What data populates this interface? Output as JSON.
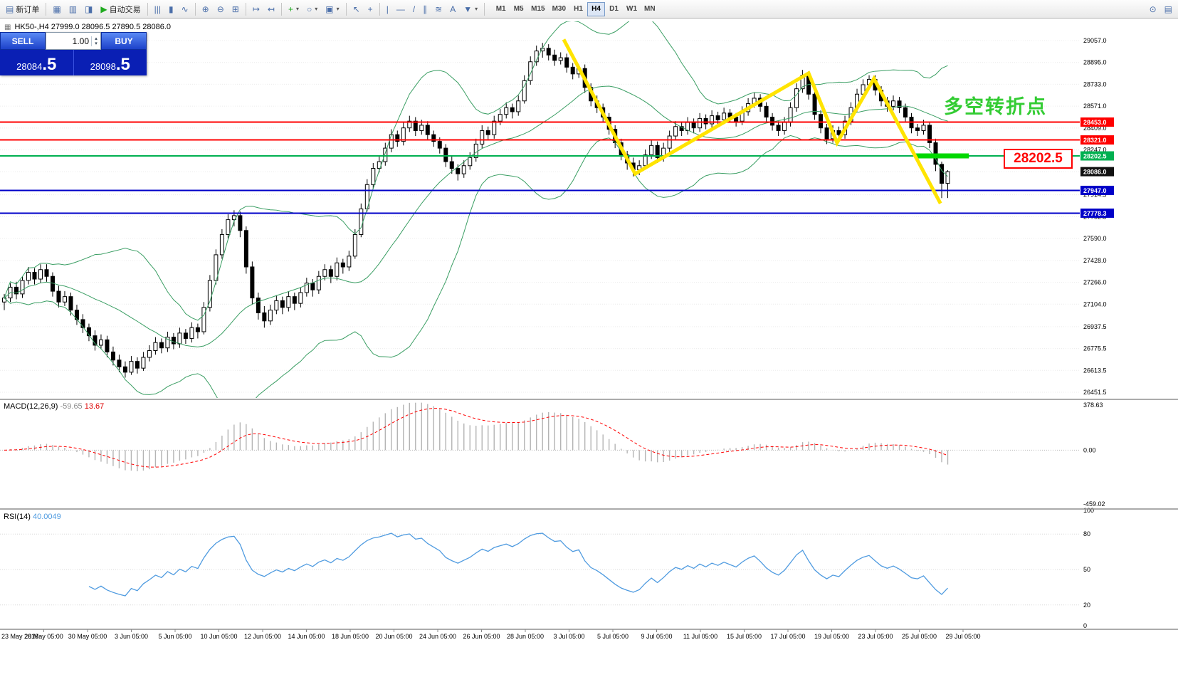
{
  "toolbar": {
    "items": [
      {
        "name": "new-order-button",
        "glyph": "▤",
        "label": "新订单"
      },
      {
        "name": "sep"
      },
      {
        "name": "chart-window-icon",
        "glyph": "▦"
      },
      {
        "name": "data-window-icon",
        "glyph": "▥"
      },
      {
        "name": "navigator-icon",
        "glyph": "◨"
      },
      {
        "name": "auto-trading-button",
        "glyph": "▶",
        "label": "自动交易",
        "glyph_color": "#1faa1f"
      },
      {
        "name": "sep"
      },
      {
        "name": "bar-chart-mode-icon",
        "glyph": "|||"
      },
      {
        "name": "candlestick-mode-icon",
        "glyph": "▮"
      },
      {
        "name": "line-chart-mode-icon",
        "glyph": "∿"
      },
      {
        "name": "sep"
      },
      {
        "name": "zoom-in-icon",
        "glyph": "⊕"
      },
      {
        "name": "zoom-out-icon",
        "glyph": "⊖"
      },
      {
        "name": "tile-windows-icon",
        "glyph": "⊞"
      },
      {
        "name": "sep"
      },
      {
        "name": "auto-scroll-icon",
        "glyph": "↦"
      },
      {
        "name": "chart-shift-icon",
        "glyph": "↤"
      },
      {
        "name": "sep"
      },
      {
        "name": "add-indicator-icon",
        "glyph": "+",
        "glyph_color": "#1faa1f",
        "dropdown": true
      },
      {
        "name": "period-icon",
        "glyph": "○",
        "dropdown": true
      },
      {
        "name": "template-icon",
        "glyph": "▣",
        "dropdown": true
      },
      {
        "name": "sep"
      },
      {
        "name": "cursor-icon",
        "glyph": "↖"
      },
      {
        "name": "crosshair-icon",
        "glyph": "+"
      },
      {
        "name": "sep"
      },
      {
        "name": "vertical-line-icon",
        "glyph": "|"
      },
      {
        "name": "horizontal-line-icon",
        "glyph": "—"
      },
      {
        "name": "trendline-icon",
        "glyph": "/"
      },
      {
        "name": "channel-icon",
        "glyph": "∥"
      },
      {
        "name": "fibonacci-icon",
        "glyph": "≋"
      },
      {
        "name": "text-label-icon",
        "glyph": "A"
      },
      {
        "name": "arrows-tool-icon",
        "glyph": "▼",
        "dropdown": true
      },
      {
        "name": "sep"
      }
    ],
    "timeframes": [
      "M1",
      "M5",
      "M15",
      "M30",
      "H1",
      "H4",
      "D1",
      "W1",
      "MN"
    ],
    "active_timeframe": "H4",
    "right_items": [
      {
        "name": "search-icon",
        "glyph": "⊙"
      },
      {
        "name": "print-icon",
        "glyph": "▤"
      }
    ]
  },
  "symbol_header": {
    "text": "HK50-,H4  27999.0 28096.5 27890.5 28086.0"
  },
  "trade_panel": {
    "sell_label": "SELL",
    "buy_label": "BUY",
    "volume": "1.00",
    "sell_price_main": "28084",
    "sell_price_frac": ".5",
    "buy_price_main": "28098",
    "buy_price_frac": ".5"
  },
  "annotation": {
    "text": "多空转折点",
    "color": "#33cc33"
  },
  "price_label_box": {
    "text": "28202.5",
    "color": "#ff0000"
  },
  "chart_data": {
    "type": "candlestick",
    "symbol": "HK50-",
    "timeframe": "H4",
    "ohlc_header": {
      "open": 27999.0,
      "high": 28096.5,
      "low": 27890.5,
      "close": 28086.0
    },
    "price_axis": {
      "min": 26451.5,
      "max": 29057.0,
      "ticks": [
        "29057.0",
        "28895.0",
        "28733.0",
        "28571.0",
        "28409.0",
        "28247.0",
        "28085.0",
        "27914.5",
        "27752.5",
        "27590.0",
        "27428.0",
        "27266.0",
        "27104.0",
        "26937.5",
        "26775.5",
        "26613.5",
        "26451.5"
      ]
    },
    "candles": [
      [
        27120,
        27180,
        27060,
        27150
      ],
      [
        27150,
        27260,
        27120,
        27230
      ],
      [
        27230,
        27270,
        27140,
        27180
      ],
      [
        27180,
        27310,
        27150,
        27280
      ],
      [
        27280,
        27380,
        27250,
        27340
      ],
      [
        27340,
        27370,
        27250,
        27290
      ],
      [
        27290,
        27400,
        27260,
        27360
      ],
      [
        27360,
        27400,
        27270,
        27310
      ],
      [
        27310,
        27340,
        27160,
        27200
      ],
      [
        27200,
        27240,
        27080,
        27120
      ],
      [
        27120,
        27200,
        27090,
        27160
      ],
      [
        27160,
        27190,
        27020,
        27060
      ],
      [
        27060,
        27100,
        26950,
        26990
      ],
      [
        26990,
        27030,
        26890,
        26930
      ],
      [
        26930,
        26960,
        26830,
        26870
      ],
      [
        26870,
        26910,
        26760,
        26800
      ],
      [
        26800,
        26880,
        26770,
        26840
      ],
      [
        26840,
        26870,
        26710,
        26750
      ],
      [
        26750,
        26790,
        26650,
        26690
      ],
      [
        26690,
        26730,
        26600,
        26640
      ],
      [
        26640,
        26680,
        26560,
        26600
      ],
      [
        26600,
        26720,
        26580,
        26680
      ],
      [
        26680,
        26710,
        26590,
        26630
      ],
      [
        26630,
        26750,
        26610,
        26710
      ],
      [
        26710,
        26800,
        26680,
        26760
      ],
      [
        26760,
        26860,
        26730,
        26820
      ],
      [
        26820,
        26850,
        26740,
        26780
      ],
      [
        26780,
        26900,
        26750,
        26860
      ],
      [
        26860,
        26890,
        26770,
        26810
      ],
      [
        26810,
        26930,
        26780,
        26890
      ],
      [
        26890,
        26920,
        26810,
        26850
      ],
      [
        26850,
        26970,
        26820,
        26930
      ],
      [
        26930,
        26960,
        26850,
        26900
      ],
      [
        26900,
        27120,
        26880,
        27080
      ],
      [
        27080,
        27320,
        27050,
        27280
      ],
      [
        27280,
        27510,
        27250,
        27470
      ],
      [
        27470,
        27660,
        27440,
        27620
      ],
      [
        27620,
        27770,
        27590,
        27730
      ],
      [
        27730,
        27800,
        27680,
        27760
      ],
      [
        27760,
        27790,
        27600,
        27650
      ],
      [
        27650,
        27680,
        27330,
        27380
      ],
      [
        27380,
        27420,
        27100,
        27150
      ],
      [
        27150,
        27190,
        26990,
        27040
      ],
      [
        27040,
        27090,
        26930,
        26980
      ],
      [
        26980,
        27100,
        26950,
        27060
      ],
      [
        27060,
        27170,
        27030,
        27130
      ],
      [
        27130,
        27160,
        27030,
        27080
      ],
      [
        27080,
        27200,
        27050,
        27160
      ],
      [
        27160,
        27190,
        27060,
        27110
      ],
      [
        27110,
        27230,
        27080,
        27190
      ],
      [
        27190,
        27300,
        27160,
        27260
      ],
      [
        27260,
        27290,
        27160,
        27210
      ],
      [
        27210,
        27350,
        27180,
        27310
      ],
      [
        27310,
        27400,
        27280,
        27360
      ],
      [
        27360,
        27390,
        27260,
        27310
      ],
      [
        27310,
        27450,
        27280,
        27410
      ],
      [
        27410,
        27440,
        27330,
        27380
      ],
      [
        27380,
        27500,
        27350,
        27460
      ],
      [
        27460,
        27660,
        27440,
        27620
      ],
      [
        27620,
        27850,
        27600,
        27810
      ],
      [
        27810,
        28030,
        27790,
        27990
      ],
      [
        27990,
        28150,
        27960,
        28110
      ],
      [
        28110,
        28200,
        28080,
        28160
      ],
      [
        28160,
        28300,
        28130,
        28260
      ],
      [
        28260,
        28400,
        28230,
        28360
      ],
      [
        28360,
        28390,
        28270,
        28310
      ],
      [
        28310,
        28450,
        28280,
        28410
      ],
      [
        28410,
        28500,
        28380,
        28460
      ],
      [
        28460,
        28490,
        28350,
        28390
      ],
      [
        28390,
        28470,
        28360,
        28430
      ],
      [
        28430,
        28460,
        28320,
        28360
      ],
      [
        28360,
        28390,
        28270,
        28310
      ],
      [
        28310,
        28340,
        28220,
        28260
      ],
      [
        28260,
        28290,
        28120,
        28160
      ],
      [
        28160,
        28200,
        28070,
        28110
      ],
      [
        28110,
        28140,
        28020,
        28070
      ],
      [
        28070,
        28170,
        28040,
        28130
      ],
      [
        28130,
        28230,
        28100,
        28190
      ],
      [
        28190,
        28330,
        28160,
        28290
      ],
      [
        28290,
        28430,
        28260,
        28390
      ],
      [
        28390,
        28420,
        28320,
        28360
      ],
      [
        28360,
        28500,
        28330,
        28460
      ],
      [
        28460,
        28550,
        28430,
        28510
      ],
      [
        28510,
        28600,
        28480,
        28560
      ],
      [
        28560,
        28590,
        28480,
        28530
      ],
      [
        28530,
        28650,
        28500,
        28610
      ],
      [
        28610,
        28800,
        28590,
        28760
      ],
      [
        28760,
        28940,
        28730,
        28900
      ],
      [
        28900,
        29020,
        28870,
        28980
      ],
      [
        28980,
        29040,
        28930,
        29000
      ],
      [
        29000,
        29030,
        28910,
        28950
      ],
      [
        28950,
        28990,
        28870,
        28910
      ],
      [
        28910,
        28970,
        28880,
        28930
      ],
      [
        28930,
        28960,
        28820,
        28860
      ],
      [
        28860,
        28890,
        28770,
        28810
      ],
      [
        28810,
        28880,
        28780,
        28850
      ],
      [
        28850,
        28880,
        28670,
        28710
      ],
      [
        28710,
        28740,
        28570,
        28610
      ],
      [
        28610,
        28650,
        28520,
        28560
      ],
      [
        28560,
        28590,
        28450,
        28490
      ],
      [
        28490,
        28520,
        28360,
        28400
      ],
      [
        28400,
        28430,
        28260,
        28300
      ],
      [
        28300,
        28330,
        28170,
        28210
      ],
      [
        28210,
        28240,
        28100,
        28150
      ],
      [
        28150,
        28190,
        28050,
        28100
      ],
      [
        28100,
        28170,
        28060,
        28130
      ],
      [
        28130,
        28250,
        28100,
        28210
      ],
      [
        28210,
        28320,
        28180,
        28280
      ],
      [
        28280,
        28310,
        28150,
        28190
      ],
      [
        28190,
        28300,
        28160,
        28260
      ],
      [
        28260,
        28390,
        28230,
        28350
      ],
      [
        28350,
        28460,
        28320,
        28420
      ],
      [
        28420,
        28450,
        28350,
        28390
      ],
      [
        28390,
        28490,
        28360,
        28450
      ],
      [
        28450,
        28480,
        28370,
        28410
      ],
      [
        28410,
        28520,
        28380,
        28480
      ],
      [
        28480,
        28510,
        28400,
        28440
      ],
      [
        28440,
        28540,
        28410,
        28500
      ],
      [
        28500,
        28530,
        28430,
        28470
      ],
      [
        28470,
        28560,
        28440,
        28520
      ],
      [
        28520,
        28550,
        28450,
        28490
      ],
      [
        28490,
        28520,
        28420,
        28460
      ],
      [
        28460,
        28570,
        28430,
        28530
      ],
      [
        28530,
        28630,
        28500,
        28590
      ],
      [
        28590,
        28670,
        28560,
        28630
      ],
      [
        28630,
        28660,
        28530,
        28570
      ],
      [
        28570,
        28600,
        28450,
        28490
      ],
      [
        28490,
        28520,
        28390,
        28430
      ],
      [
        28430,
        28460,
        28350,
        28390
      ],
      [
        28390,
        28490,
        28360,
        28450
      ],
      [
        28450,
        28600,
        28420,
        28560
      ],
      [
        28560,
        28740,
        28530,
        28700
      ],
      [
        28700,
        28840,
        28670,
        28800
      ],
      [
        28800,
        28830,
        28620,
        28660
      ],
      [
        28660,
        28690,
        28470,
        28510
      ],
      [
        28510,
        28540,
        28370,
        28410
      ],
      [
        28410,
        28440,
        28290,
        28330
      ],
      [
        28330,
        28430,
        28300,
        28390
      ],
      [
        28390,
        28420,
        28310,
        28360
      ],
      [
        28360,
        28500,
        28330,
        28460
      ],
      [
        28460,
        28600,
        28430,
        28560
      ],
      [
        28560,
        28700,
        28530,
        28660
      ],
      [
        28660,
        28770,
        28630,
        28730
      ],
      [
        28730,
        28800,
        28700,
        28770
      ],
      [
        28770,
        28800,
        28650,
        28690
      ],
      [
        28690,
        28720,
        28570,
        28610
      ],
      [
        28610,
        28640,
        28530,
        28570
      ],
      [
        28570,
        28650,
        28540,
        28610
      ],
      [
        28610,
        28640,
        28520,
        28560
      ],
      [
        28560,
        28590,
        28450,
        28490
      ],
      [
        28490,
        28520,
        28370,
        28410
      ],
      [
        28410,
        28440,
        28350,
        28390
      ],
      [
        28390,
        28470,
        28360,
        28430
      ],
      [
        28430,
        28450,
        28260,
        28300
      ],
      [
        28300,
        28330,
        28090,
        28140
      ],
      [
        28140,
        28160,
        27890,
        27999
      ],
      [
        27999,
        28096.5,
        27890.5,
        28086
      ]
    ],
    "bollinger": {
      "period": 20,
      "deviation": 2,
      "color": "#3a9e63"
    },
    "levels": [
      {
        "price": 28453.0,
        "color": "#ff0000",
        "tag": "28453.0"
      },
      {
        "price": 28321.0,
        "color": "#ff0000",
        "tag": "28321.0"
      },
      {
        "price": 28202.5,
        "color": "#00b050",
        "tag": "28202.5"
      },
      {
        "price": 27947.0,
        "color": "#0000c8",
        "tag": "27947.0"
      },
      {
        "price": 27778.3,
        "color": "#0000c8",
        "tag": "27778.3"
      }
    ],
    "current_price_tag": "28086.0",
    "highlight_segment": {
      "price": 28202.5,
      "from_index": 150.5,
      "to_index": 159.5,
      "color": "#00d800"
    },
    "zigzag": {
      "color": "#ffe400",
      "points": [
        {
          "i": 92.5,
          "p": 29065
        },
        {
          "i": 104.3,
          "p": 28070
        },
        {
          "i": 133.0,
          "p": 28815
        },
        {
          "i": 137.7,
          "p": 28300
        },
        {
          "i": 143.8,
          "p": 28775
        },
        {
          "i": 154.8,
          "p": 27850
        }
      ]
    },
    "macd": {
      "name": "MACD(12,26,9)",
      "main_value": "-59.65",
      "signal_value": "13.67",
      "params": [
        12,
        26,
        9
      ],
      "axis": [
        "378.63",
        "0.00",
        "-459.02"
      ]
    },
    "rsi": {
      "name": "RSI(14)",
      "value": "40.0049",
      "period": 14,
      "levels": [
        80,
        50,
        20
      ],
      "axis": [
        "100",
        "80",
        "50",
        "20",
        "0"
      ]
    },
    "time_axis": [
      "23 May 2019",
      "28 May 05:00",
      "30 May 05:00",
      "3 Jun 05:00",
      "5 Jun 05:00",
      "10 Jun 05:00",
      "12 Jun 05:00",
      "14 Jun 05:00",
      "18 Jun 05:00",
      "20 Jun 05:00",
      "24 Jun 05:00",
      "26 Jun 05:00",
      "28 Jun 05:00",
      "3 Jul 05:00",
      "5 Jul 05:00",
      "9 Jul 05:00",
      "11 Jul 05:00",
      "15 Jul 05:00",
      "17 Jul 05:00",
      "19 Jul 05:00",
      "23 Jul 05:00",
      "25 Jul 05:00",
      "29 Jul 05:00"
    ]
  }
}
